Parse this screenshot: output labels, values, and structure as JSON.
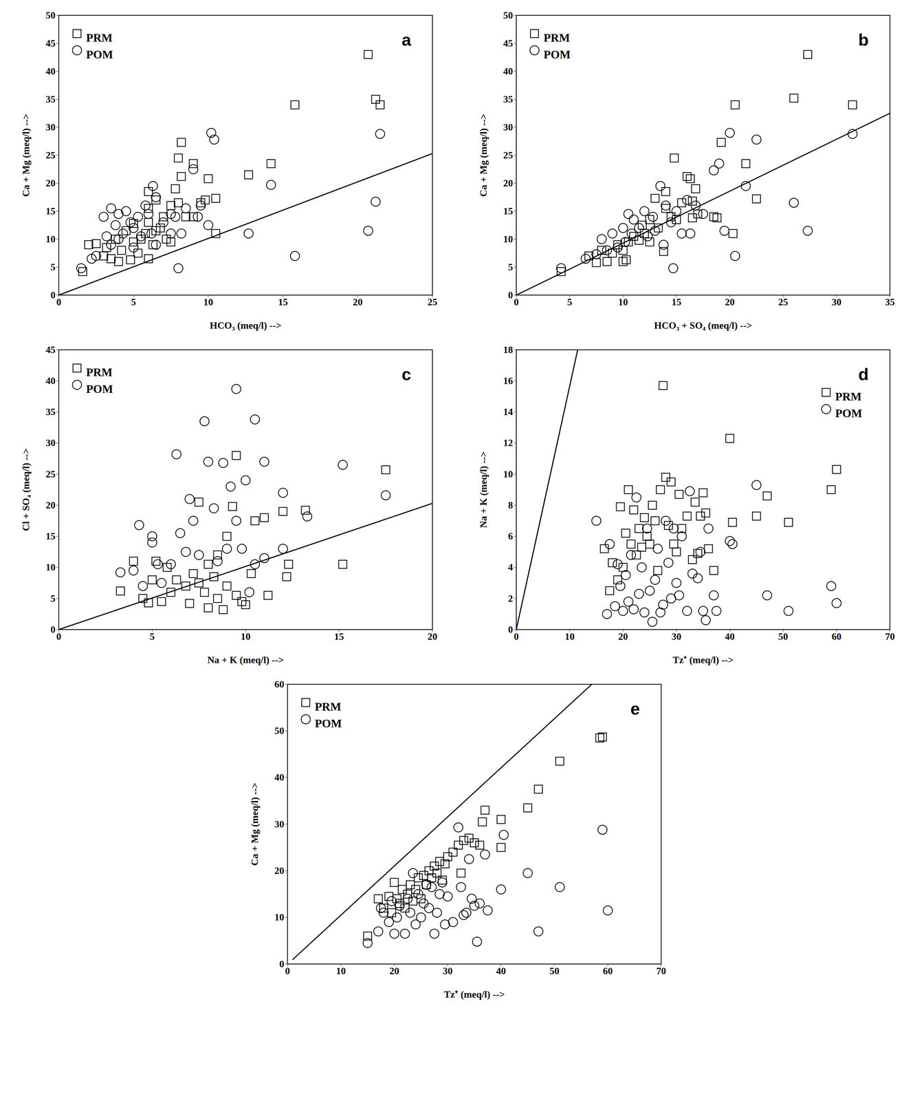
{
  "chart_data": [
    {
      "type": "scatter",
      "title": "a",
      "x_label": "HCO₃ (meq/l) -->",
      "y_label": "Ca + Mg (meq/l) -->",
      "xlim": [
        0,
        25
      ],
      "ylim": [
        0,
        50
      ],
      "xticks": [
        0,
        5,
        10,
        15,
        20,
        25
      ],
      "yticks": [
        0,
        5,
        10,
        15,
        20,
        25,
        30,
        35,
        40,
        45,
        50
      ],
      "legend": "top-left",
      "series": [
        {
          "name": "PRM",
          "color": "#000000",
          "marker": "square",
          "x": [
            1.6,
            2,
            2.5,
            3,
            3.2,
            3.5,
            3.8,
            4,
            4.2,
            4.5,
            4.8,
            5,
            5,
            5.3,
            5.5,
            5.8,
            6,
            6,
            6,
            6,
            6.3,
            6.5,
            6.8,
            6.5,
            7,
            7.2,
            7.5,
            7.5,
            7.8,
            8,
            8,
            8.2,
            8.2,
            8.5,
            9,
            9,
            9.5,
            9.8,
            10,
            10.5,
            10.5,
            12.7,
            14.2,
            15.8,
            20.7,
            21.2,
            21.5
          ],
          "values": [
            4.2,
            9,
            9.2,
            7,
            8.5,
            6.5,
            10,
            6,
            8,
            11.5,
            6.3,
            9.5,
            12.8,
            7.5,
            10,
            11,
            6.5,
            13,
            15.5,
            18.5,
            9,
            11.5,
            12,
            17,
            14,
            10,
            9.5,
            16,
            19,
            16.5,
            24.5,
            27.3,
            21.2,
            14,
            23.5,
            14,
            16.5,
            17,
            20.8,
            11,
            17.3,
            21.5,
            23.5,
            34,
            43,
            35,
            34
          ]
        },
        {
          "name": "POM",
          "color": "#000000",
          "marker": "circle",
          "x": [
            1.5,
            2.2,
            2.5,
            3,
            3.2,
            3.5,
            3.5,
            3.8,
            4,
            4,
            4.3,
            4.5,
            4.8,
            5,
            5,
            5.3,
            5.5,
            5.8,
            6,
            6.2,
            6.3,
            6.5,
            6.5,
            7,
            7.5,
            7.5,
            7.8,
            8,
            8.2,
            8.5,
            9,
            9.3,
            9.5,
            10,
            10.2,
            10.4,
            12.7,
            14.2,
            15.8,
            20.7,
            21.2,
            21.5
          ],
          "values": [
            4.8,
            6.5,
            7,
            14,
            10.5,
            15.5,
            9,
            12.5,
            14.5,
            10,
            11,
            15,
            13,
            12,
            8.5,
            14,
            10.5,
            16,
            14.5,
            11,
            19.5,
            17.5,
            9,
            13,
            14.5,
            11,
            14,
            4.8,
            11,
            15.5,
            22.5,
            14,
            16,
            12.5,
            29,
            27.8,
            11,
            19.7,
            7,
            11.5,
            16.7,
            28.8
          ]
        },
        {
          "type": "line",
          "color": "#000000",
          "line_style": "solid",
          "x": [
            0,
            25
          ],
          "values": [
            0,
            25.3
          ]
        }
      ]
    },
    {
      "type": "scatter",
      "title": "b",
      "x_label": "HCO₃ + SO₄ (meq/l) -->",
      "y_label": "Ca + Mg (meq/l) -->",
      "xlim": [
        0,
        35
      ],
      "ylim": [
        0,
        50
      ],
      "xticks": [
        0,
        5,
        10,
        15,
        20,
        25,
        30,
        35
      ],
      "yticks": [
        0,
        5,
        10,
        15,
        20,
        25,
        30,
        35,
        40,
        45,
        50
      ],
      "legend": "top-left",
      "series": [
        {
          "name": "PRM",
          "color": "#000000",
          "marker": "square",
          "x": [
            4.2,
            6.8,
            7.5,
            8,
            8.5,
            9,
            9.5,
            10,
            10,
            10.3,
            10.5,
            11,
            11.5,
            11.8,
            12,
            12.5,
            12.5,
            13,
            13.3,
            13.8,
            14,
            14,
            14.5,
            14.8,
            15,
            15.5,
            16,
            16.3,
            16.5,
            16.5,
            16.8,
            17,
            18.5,
            18.8,
            19.2,
            20.3,
            20.5,
            21.5,
            22.5,
            26,
            27.3,
            31.5
          ],
          "values": [
            4.2,
            7,
            5.8,
            8,
            6,
            7.5,
            9,
            6,
            8,
            6.3,
            9.5,
            10.5,
            9.8,
            12.5,
            11,
            13.5,
            9.5,
            17.3,
            12,
            7.8,
            15.5,
            18.5,
            14,
            24.5,
            13.5,
            16.5,
            21.2,
            20.8,
            16.8,
            13.8,
            19,
            14.5,
            14,
            13.8,
            27.3,
            11,
            34,
            23.5,
            17.2,
            35.2,
            43,
            34
          ]
        },
        {
          "name": "POM",
          "color": "#000000",
          "marker": "circle",
          "x": [
            4.2,
            6.5,
            7.5,
            8,
            8.5,
            9,
            9.5,
            10,
            10.2,
            10.5,
            10.8,
            11,
            11.5,
            12,
            12.3,
            12.8,
            13,
            13.5,
            13.8,
            14,
            14.5,
            14.7,
            15,
            15.5,
            16,
            16.3,
            16.8,
            17.5,
            18.5,
            19,
            19.5,
            20,
            20.5,
            21.5,
            22.5,
            26,
            27.3,
            31.5
          ],
          "values": [
            4.8,
            6.5,
            7.3,
            10,
            8,
            11,
            8.5,
            12,
            9.5,
            14.5,
            11,
            13.5,
            12,
            15,
            10.5,
            14,
            11.5,
            19.5,
            9,
            16,
            13,
            4.8,
            15,
            11,
            17,
            11,
            16,
            14.5,
            22.3,
            23.5,
            11.5,
            29,
            7,
            19.5,
            27.8,
            16.5,
            11.5,
            28.8
          ]
        },
        {
          "type": "line",
          "color": "#000000",
          "line_style": "solid",
          "x": [
            0,
            35
          ],
          "values": [
            0,
            32.5
          ]
        }
      ]
    },
    {
      "type": "scatter",
      "title": "c",
      "x_label": "Na + K (meq/l) -->",
      "y_label": "Cl + SO₄ (meq/l) -->",
      "xlim": [
        0,
        20
      ],
      "ylim": [
        0,
        45
      ],
      "xticks": [
        0,
        5,
        10,
        15,
        20
      ],
      "yticks": [
        0,
        5,
        10,
        15,
        20,
        25,
        30,
        35,
        40,
        45
      ],
      "legend": "top-left",
      "series": [
        {
          "name": "PRM",
          "color": "#000000",
          "marker": "square",
          "x": [
            3.3,
            4,
            4.5,
            4.8,
            5,
            5.2,
            5.5,
            5.8,
            6,
            6.3,
            6.8,
            7,
            7.2,
            7.5,
            7.5,
            7.8,
            8,
            8,
            8.3,
            8.5,
            8.5,
            8.8,
            9,
            9,
            9.3,
            9.5,
            9.5,
            9.8,
            10,
            10.3,
            10.5,
            11,
            11.2,
            12,
            12.2,
            12.3,
            13.2,
            15.2,
            17.5
          ],
          "values": [
            6.2,
            11,
            5,
            4.3,
            8,
            11,
            4.5,
            10,
            6,
            8,
            7,
            4.2,
            9,
            20.5,
            7.5,
            6,
            10.5,
            3.5,
            8.5,
            5,
            12,
            3.2,
            15,
            7,
            19.8,
            28,
            5.5,
            4.5,
            4,
            9,
            17.5,
            18,
            5.5,
            19,
            8.5,
            10.5,
            19.2,
            10.5,
            25.7
          ]
        },
        {
          "name": "POM",
          "color": "#000000",
          "marker": "circle",
          "x": [
            3.3,
            4,
            4.3,
            4.5,
            5,
            5,
            5.3,
            5.5,
            6,
            6.3,
            6.5,
            6.8,
            7,
            7.2,
            7.5,
            7.8,
            8,
            8.3,
            8.5,
            8.8,
            9,
            9.2,
            9.5,
            9.5,
            9.8,
            10,
            10.2,
            10.5,
            10.5,
            11,
            11,
            12,
            12,
            13.3,
            15.2,
            17.5
          ],
          "values": [
            9.2,
            9.5,
            16.8,
            7,
            15,
            14,
            10.5,
            7.5,
            10.5,
            28.2,
            15.5,
            12.5,
            21,
            17.5,
            12,
            33.5,
            27,
            19.5,
            11,
            26.8,
            13,
            23,
            38.7,
            17.5,
            13,
            24,
            6,
            33.8,
            10.5,
            27,
            11.5,
            22,
            13,
            18.2,
            26.5,
            21.6
          ]
        },
        {
          "type": "line",
          "color": "#000000",
          "line_style": "solid",
          "x": [
            0,
            20
          ],
          "values": [
            0,
            20.3
          ]
        }
      ]
    },
    {
      "type": "scatter",
      "title": "d",
      "x_label": "Tz⁺ (meq/l) -->",
      "y_label": "Na + K (meq/l) -->",
      "xlim": [
        0,
        70
      ],
      "ylim": [
        0,
        18
      ],
      "xticks": [
        0,
        10,
        20,
        30,
        40,
        50,
        60,
        70
      ],
      "yticks": [
        0,
        2,
        4,
        6,
        8,
        10,
        12,
        14,
        16,
        18
      ],
      "legend": "top-right",
      "series": [
        {
          "name": "PRM",
          "color": "#000000",
          "marker": "square",
          "x": [
            16.5,
            17.5,
            18,
            19,
            19.5,
            20,
            20.5,
            21,
            21.5,
            22,
            22.5,
            23,
            23.5,
            24,
            24.5,
            25,
            25.5,
            26,
            26.5,
            27,
            27.5,
            28,
            28.5,
            29,
            29.5,
            30,
            30.5,
            31,
            32,
            33,
            33.5,
            34,
            34.5,
            35,
            35.5,
            36,
            37,
            40,
            40.5,
            45,
            47,
            51,
            59,
            60
          ],
          "values": [
            5.2,
            2.5,
            4.3,
            3.2,
            7.9,
            4,
            6.2,
            9,
            5.5,
            7.7,
            4.8,
            6.5,
            5.3,
            7.2,
            6,
            5.5,
            8,
            7,
            3.8,
            9,
            15.7,
            9.8,
            6.7,
            9.5,
            5.5,
            5,
            8.7,
            6.5,
            7.3,
            4.5,
            8.2,
            4.9,
            7.3,
            8.8,
            7.5,
            5.2,
            3.8,
            12.3,
            6.9,
            7.3,
            8.6,
            6.9,
            9,
            10.3
          ]
        },
        {
          "name": "POM",
          "color": "#000000",
          "marker": "circle",
          "x": [
            15,
            17,
            17.5,
            18.5,
            19,
            19.5,
            20,
            20.5,
            21,
            21.5,
            22,
            22.5,
            23,
            23.5,
            24,
            24.5,
            25,
            25.5,
            26,
            26.5,
            27,
            27.5,
            28,
            28.5,
            29,
            29.5,
            30,
            30.5,
            31,
            32,
            32.5,
            33,
            34,
            34.5,
            35,
            35.5,
            36,
            37,
            37.5,
            40,
            40.5,
            45,
            47,
            51,
            59,
            60
          ],
          "values": [
            7,
            1,
            5.5,
            1.5,
            4.2,
            2.8,
            1.2,
            3.5,
            1.8,
            4.8,
            1.3,
            8.5,
            2.3,
            4,
            1.1,
            6.5,
            2.5,
            0.5,
            3.2,
            5.2,
            1.1,
            1.6,
            7,
            4.3,
            2,
            6.5,
            3,
            2.2,
            6,
            1.2,
            8.9,
            3.6,
            3.3,
            5,
            1.2,
            0.6,
            6.5,
            2.2,
            1.2,
            5.7,
            5.5,
            9.3,
            2.2,
            1.2,
            2.8,
            1.7
          ]
        },
        {
          "type": "line",
          "color": "#000000",
          "line_style": "solid",
          "x": [
            0,
            11.5
          ],
          "values": [
            0,
            18
          ]
        }
      ]
    },
    {
      "type": "scatter",
      "title": "e",
      "x_label": "Tz⁺ (meq/l) -->",
      "y_label": "Ca + Mg (meq/l) -->",
      "xlim": [
        0,
        70
      ],
      "ylim": [
        0,
        60
      ],
      "xticks": [
        0,
        10,
        20,
        30,
        40,
        50,
        60,
        70
      ],
      "yticks": [
        0,
        10,
        20,
        30,
        40,
        50,
        60
      ],
      "legend": "top-left",
      "series": [
        {
          "name": "PRM",
          "color": "#000000",
          "marker": "square",
          "x": [
            15,
            17,
            18,
            19,
            19.5,
            20,
            20.5,
            21,
            21.5,
            22,
            22.5,
            23,
            23.5,
            24,
            24.5,
            25,
            25.5,
            26,
            26.5,
            27,
            27.5,
            28,
            28.5,
            29,
            29.5,
            30,
            31,
            32,
            32.5,
            33,
            34,
            35,
            36,
            36.5,
            37,
            40,
            40,
            45,
            47,
            51,
            58.5,
            59
          ],
          "values": [
            6,
            14,
            12,
            14.5,
            11,
            17.5,
            14,
            13,
            16,
            12,
            15,
            17,
            13.5,
            16,
            18.5,
            14,
            19,
            17,
            20,
            18.5,
            21,
            19.5,
            22,
            18,
            21.5,
            23,
            24,
            25.5,
            19.5,
            26.5,
            27,
            26,
            25.5,
            30.5,
            33,
            31,
            25,
            33.5,
            37.5,
            43.5,
            48.5,
            48.7
          ]
        },
        {
          "name": "POM",
          "color": "#000000",
          "marker": "circle",
          "x": [
            15,
            17,
            17.5,
            18,
            19,
            19.5,
            20,
            20.5,
            21,
            22,
            22.5,
            23,
            23.5,
            24,
            24.5,
            25,
            25.5,
            26,
            26.5,
            27,
            27.5,
            28,
            28.5,
            29,
            29.5,
            30,
            31,
            32,
            32.5,
            33,
            33.5,
            34,
            34.5,
            35,
            35.5,
            36,
            37,
            37.5,
            40,
            40.5,
            45,
            47,
            51,
            59,
            60
          ],
          "values": [
            4.5,
            7,
            12,
            11,
            9,
            13.5,
            6.5,
            10,
            12.5,
            6.5,
            14,
            11,
            19.5,
            8.5,
            15,
            10,
            13,
            17,
            12,
            16.5,
            6.5,
            11,
            15,
            17.5,
            8.5,
            14.5,
            9,
            29.3,
            16.5,
            10.5,
            11,
            22.5,
            14,
            12.5,
            4.8,
            13,
            23.5,
            11.5,
            16,
            27.7,
            19.5,
            7,
            16.5,
            28.8,
            11.5
          ]
        },
        {
          "type": "line",
          "color": "#000000",
          "line_style": "solid",
          "x": [
            1,
            57
          ],
          "values": [
            1,
            60
          ]
        }
      ]
    }
  ]
}
